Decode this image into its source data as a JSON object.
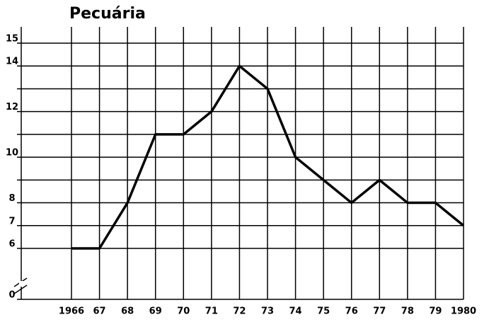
{
  "chart_data": {
    "type": "line",
    "title": "Pecuária",
    "categories": [
      "1966",
      "67",
      "68",
      "69",
      "70",
      "71",
      "72",
      "73",
      "74",
      "75",
      "76",
      "77",
      "78",
      "79",
      "1980"
    ],
    "series": [
      {
        "name": "Pecuária",
        "color": "#000000",
        "values": [
          6,
          6,
          8,
          11,
          11,
          12,
          14,
          13,
          10,
          9,
          8,
          9,
          8,
          8,
          7
        ]
      }
    ],
    "ylim": [
      0,
      15
    ],
    "axis_break": [
      0,
      6
    ],
    "yticks": [
      0,
      6,
      7,
      8,
      10,
      12,
      14,
      15
    ],
    "ygrid": [
      0,
      6,
      7,
      8,
      9,
      10,
      11,
      12,
      13,
      14,
      15
    ],
    "grid": true
  }
}
